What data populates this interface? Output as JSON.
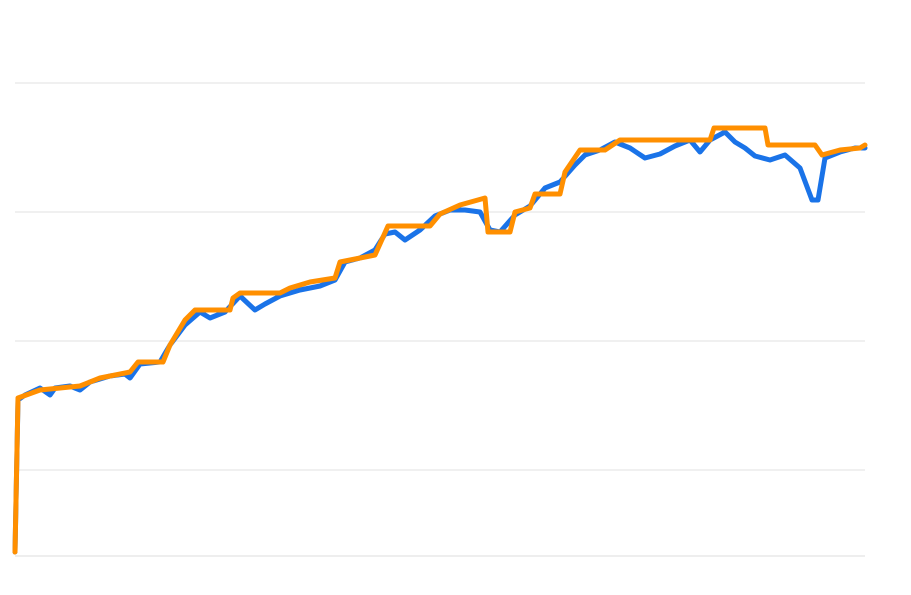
{
  "chart_data": {
    "type": "line",
    "xlim": [
      0,
      850
    ],
    "ylim": [
      0,
      516
    ],
    "yticks": [
      86,
      215,
      344,
      473
    ],
    "grid": true,
    "series": [
      {
        "color": "#1a73e8",
        "x": [
          0,
          3,
          10,
          25,
          35,
          40,
          55,
          65,
          75,
          95,
          110,
          115,
          125,
          145,
          155,
          170,
          185,
          195,
          210,
          225,
          240,
          250,
          265,
          285,
          305,
          320,
          330,
          345,
          360,
          370,
          380,
          390,
          405,
          420,
          435,
          450,
          465,
          475,
          485,
          500,
          515,
          530,
          545,
          560,
          570,
          585,
          600,
          615,
          630,
          645,
          660,
          675,
          685,
          695,
          710,
          720,
          730,
          740,
          755,
          770,
          785,
          797,
          803,
          810,
          825,
          840,
          850
        ],
        "values": [
          4,
          156,
          161,
          168,
          161,
          168,
          170,
          166,
          174,
          180,
          182,
          178,
          192,
          194,
          211,
          231,
          244,
          238,
          244,
          260,
          246,
          252,
          260,
          266,
          270,
          276,
          294,
          298,
          306,
          322,
          324,
          316,
          326,
          340,
          346,
          346,
          344,
          326,
          324,
          341,
          350,
          368,
          374,
          391,
          401,
          406,
          414,
          408,
          398,
          402,
          410,
          416,
          404,
          416,
          424,
          414,
          408,
          400,
          396,
          401,
          388,
          356,
          356,
          398,
          404,
          408,
          408
        ]
      },
      {
        "color": "#ff8f00",
        "x": [
          0,
          3,
          25,
          65,
          85,
          115,
          123,
          148,
          155,
          170,
          180,
          215,
          218,
          225,
          265,
          275,
          295,
          320,
          325,
          360,
          373,
          415,
          425,
          445,
          470,
          473,
          495,
          500,
          515,
          520,
          545,
          550,
          565,
          590,
          605,
          695,
          699,
          750,
          753,
          800,
          807,
          825,
          845,
          850
        ],
        "values": [
          4,
          158,
          166,
          170,
          178,
          184,
          194,
          194,
          211,
          236,
          246,
          246,
          258,
          263,
          263,
          268,
          274,
          278,
          294,
          301,
          330,
          330,
          342,
          351,
          358,
          324,
          324,
          344,
          348,
          362,
          362,
          384,
          406,
          406,
          416,
          416,
          428,
          428,
          411,
          411,
          401,
          406,
          408,
          411
        ]
      }
    ]
  }
}
